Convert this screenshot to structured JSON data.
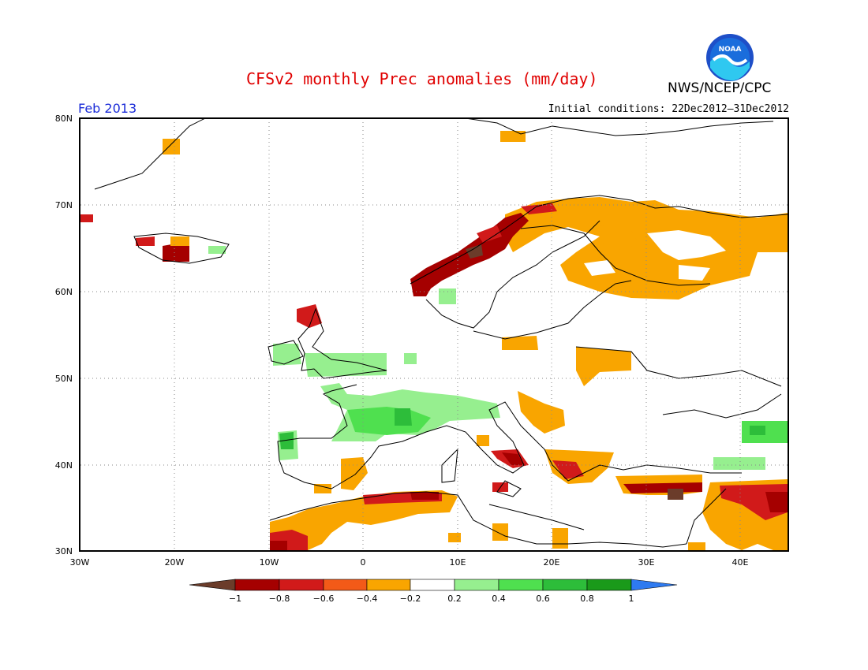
{
  "header": {
    "title": "CFSv2 monthly Prec anomalies (mm/day)",
    "agency": "NWS/NCEP/CPC",
    "period": "Feb 2013",
    "initial_conditions": "Initial conditions: 22Dec2012–31Dec2012",
    "logo_text": "NOAA"
  },
  "map": {
    "projection": "lat-lon",
    "lon_range": [
      -30,
      45
    ],
    "lat_range": [
      30,
      80
    ],
    "lat_ticks": [
      {
        "value": 80,
        "label": "80N"
      },
      {
        "value": 70,
        "label": "70N"
      },
      {
        "value": 60,
        "label": "60N"
      },
      {
        "value": 50,
        "label": "50N"
      },
      {
        "value": 40,
        "label": "40N"
      },
      {
        "value": 30,
        "label": "30N"
      }
    ],
    "lon_ticks": [
      {
        "value": -30,
        "label": "30W"
      },
      {
        "value": -20,
        "label": "20W"
      },
      {
        "value": -10,
        "label": "10W"
      },
      {
        "value": 0,
        "label": "0"
      },
      {
        "value": 10,
        "label": "10E"
      },
      {
        "value": 20,
        "label": "20E"
      },
      {
        "value": 30,
        "label": "30E"
      },
      {
        "value": 40,
        "label": "40E"
      }
    ],
    "grid": "dotted"
  },
  "colorbar": {
    "labels": [
      "−1",
      "−0.8",
      "−0.6",
      "−0.4",
      "−0.2",
      "0.2",
      "0.4",
      "0.6",
      "0.8",
      "1"
    ],
    "colors": [
      "#6b3c2a",
      "#a50000",
      "#d11a1a",
      "#f35a18",
      "#f9a500",
      "#ffffff",
      "#96ef8f",
      "#4fe04f",
      "#2dbd3a",
      "#1a9a1a",
      "#2e7af0"
    ]
  },
  "anomaly_regions": [
    {
      "name": "scandinavia-west-coast",
      "level": "-0.8",
      "color": "#a50000",
      "lon": [
        5,
        15
      ],
      "lat": [
        60,
        69
      ]
    },
    {
      "name": "scandinavia-north",
      "level": "-0.6",
      "color": "#d11a1a",
      "lon": [
        12,
        22
      ],
      "lat": [
        67,
        70
      ]
    },
    {
      "name": "northern-fennoscandia-russia",
      "level": "-0.4",
      "color": "#f9a500",
      "lon": [
        15,
        45
      ],
      "lat": [
        60,
        70
      ]
    },
    {
      "name": "iceland-south",
      "level": "-0.8",
      "color": "#a50000",
      "lon": [
        -21,
        -19
      ],
      "lat": [
        63,
        65
      ]
    },
    {
      "name": "iberia-france",
      "level": "0.4",
      "color": "#4fe04f",
      "lon": [
        -2,
        15
      ],
      "lat": [
        42,
        47
      ]
    },
    {
      "name": "north-africa-coast",
      "level": "-0.4",
      "color": "#f9a500",
      "lon": [
        -10,
        10
      ],
      "lat": [
        30,
        37
      ]
    },
    {
      "name": "turkey-south",
      "level": "-0.6",
      "color": "#d11a1a",
      "lon": [
        27,
        45
      ],
      "lat": [
        35,
        38
      ]
    }
  ]
}
